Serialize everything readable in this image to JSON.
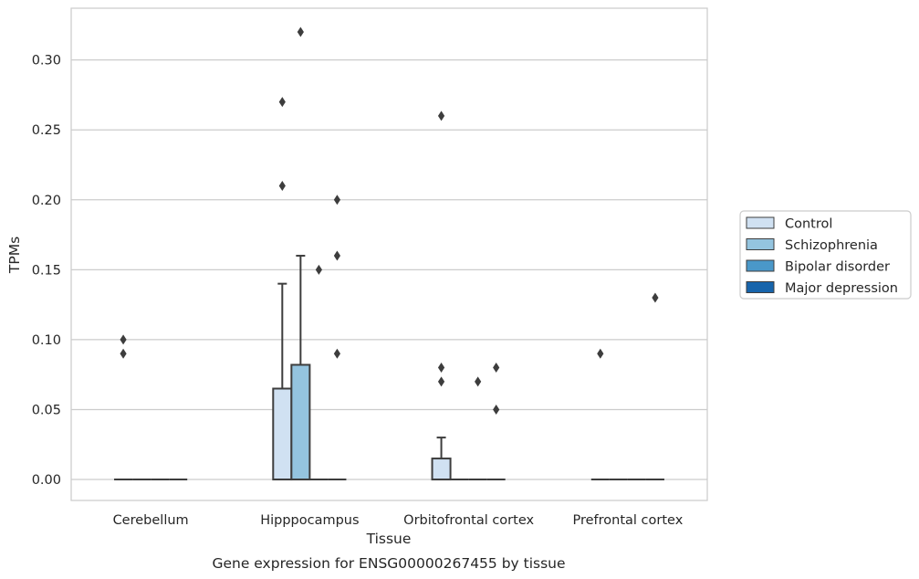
{
  "chart_data": {
    "type": "boxplot",
    "title": "",
    "caption": "Gene expression for ENSG00000267455 by tissue",
    "xlabel": "Tissue",
    "ylabel": "TPMs",
    "ylim": [
      -0.015,
      0.337
    ],
    "yticks": [
      0.0,
      0.05,
      0.1,
      0.15,
      0.2,
      0.25,
      0.3
    ],
    "ytick_labels": [
      "0.00",
      "0.05",
      "0.10",
      "0.15",
      "0.20",
      "0.25",
      "0.30"
    ],
    "grid": "horizontal",
    "legend_position": "right-outside",
    "categories": [
      "Cerebellum",
      "Hipppocampus",
      "Orbitofrontal cortex",
      "Prefrontal cortex"
    ],
    "series": [
      {
        "name": "Control",
        "color": "#d0e1f2"
      },
      {
        "name": "Schizophrenia",
        "color": "#94c4df"
      },
      {
        "name": "Bipolar disorder",
        "color": "#4a98c9"
      },
      {
        "name": "Major depression",
        "color": "#1764ab"
      }
    ],
    "boxes": [
      [
        {
          "q1": 0,
          "median": 0,
          "q3": 0,
          "whisker_low": 0,
          "whisker_high": 0,
          "outliers": [
            0.1,
            0.09
          ]
        },
        {
          "q1": 0,
          "median": 0,
          "q3": 0,
          "whisker_low": 0,
          "whisker_high": 0,
          "outliers": []
        },
        {
          "q1": 0,
          "median": 0,
          "q3": 0,
          "whisker_low": 0,
          "whisker_high": 0,
          "outliers": []
        },
        {
          "q1": 0,
          "median": 0,
          "q3": 0,
          "whisker_low": 0,
          "whisker_high": 0,
          "outliers": []
        }
      ],
      [
        {
          "q1": 0,
          "median": 0,
          "q3": 0.065,
          "whisker_low": 0,
          "whisker_high": 0.14,
          "outliers": [
            0.27,
            0.21
          ]
        },
        {
          "q1": 0,
          "median": 0,
          "q3": 0.082,
          "whisker_low": 0,
          "whisker_high": 0.16,
          "outliers": [
            0.32
          ]
        },
        {
          "q1": 0,
          "median": 0,
          "q3": 0,
          "whisker_low": 0,
          "whisker_high": 0,
          "outliers": [
            0.15
          ]
        },
        {
          "q1": 0,
          "median": 0,
          "q3": 0,
          "whisker_low": 0,
          "whisker_high": 0,
          "outliers": [
            0.2,
            0.16,
            0.09
          ]
        }
      ],
      [
        {
          "q1": 0,
          "median": 0,
          "q3": 0.015,
          "whisker_low": 0,
          "whisker_high": 0.03,
          "outliers": [
            0.26,
            0.08,
            0.07
          ]
        },
        {
          "q1": 0,
          "median": 0,
          "q3": 0,
          "whisker_low": 0,
          "whisker_high": 0,
          "outliers": []
        },
        {
          "q1": 0,
          "median": 0,
          "q3": 0,
          "whisker_low": 0,
          "whisker_high": 0,
          "outliers": [
            0.07
          ]
        },
        {
          "q1": 0,
          "median": 0,
          "q3": 0,
          "whisker_low": 0,
          "whisker_high": 0,
          "outliers": [
            0.08,
            0.05
          ]
        }
      ],
      [
        {
          "q1": 0,
          "median": 0,
          "q3": 0,
          "whisker_low": 0,
          "whisker_high": 0,
          "outliers": [
            0.09
          ]
        },
        {
          "q1": 0,
          "median": 0,
          "q3": 0,
          "whisker_low": 0,
          "whisker_high": 0,
          "outliers": []
        },
        {
          "q1": 0,
          "median": 0,
          "q3": 0,
          "whisker_low": 0,
          "whisker_high": 0,
          "outliers": []
        },
        {
          "q1": 0,
          "median": 0,
          "q3": 0,
          "whisker_low": 0,
          "whisker_high": 0,
          "outliers": [
            0.13
          ]
        }
      ]
    ]
  }
}
